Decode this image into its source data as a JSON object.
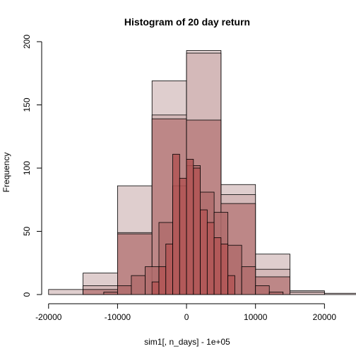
{
  "chart_data": {
    "type": "bar",
    "title": "Histogram of 20 day return",
    "xlabel": "sim1[, n_days] - 1e+05",
    "ylabel": "Frequency",
    "xlim": [
      -21000,
      21500
    ],
    "ylim": [
      0,
      200
    ],
    "x_ticks": [
      -20000,
      -10000,
      0,
      10000,
      20000
    ],
    "y_ticks": [
      0,
      50,
      100,
      150,
      200
    ],
    "x_tick_labels": [
      "-20000",
      "-10000",
      "0",
      "10000",
      "20000"
    ],
    "y_tick_labels": [
      "0",
      "50",
      "100",
      "150",
      "200"
    ],
    "grid": false,
    "legend": "none",
    "series": [
      {
        "bin_width": 5000,
        "color": "#d9c6c6",
        "bins": [
          {
            "x0": -20000,
            "count": 4
          },
          {
            "x0": -15000,
            "count": 17
          },
          {
            "x0": -10000,
            "count": 86
          },
          {
            "x0": -5000,
            "count": 169
          },
          {
            "x0": 0,
            "count": 193
          },
          {
            "x0": 5000,
            "count": 87
          },
          {
            "x0": 10000,
            "count": 32
          },
          {
            "x0": 15000,
            "count": 3
          },
          {
            "x0": 20000,
            "count": 1
          }
        ]
      },
      {
        "bin_width": 5000,
        "color": "#d2b5b5",
        "bins": [
          {
            "x0": -15000,
            "count": 7
          },
          {
            "x0": -10000,
            "count": 49
          },
          {
            "x0": -5000,
            "count": 142
          },
          {
            "x0": 0,
            "count": 191
          },
          {
            "x0": 5000,
            "count": 79
          },
          {
            "x0": 10000,
            "count": 20
          },
          {
            "x0": 15000,
            "count": 2
          }
        ]
      },
      {
        "bin_width": 5000,
        "color": "#b87e7e",
        "bins": [
          {
            "x0": -15000,
            "count": 4
          },
          {
            "x0": -10000,
            "count": 48
          },
          {
            "x0": -5000,
            "count": 139
          },
          {
            "x0": 0,
            "count": 138
          },
          {
            "x0": 5000,
            "count": 72
          },
          {
            "x0": 10000,
            "count": 14
          }
        ]
      },
      {
        "bin_width": 2000,
        "color": "#b06c6c",
        "bins": [
          {
            "x0": -12000,
            "count": 2
          },
          {
            "x0": -10000,
            "count": 7
          },
          {
            "x0": -8000,
            "count": 15
          },
          {
            "x0": -6000,
            "count": 22
          },
          {
            "x0": -4000,
            "count": 57
          },
          {
            "x0": -2000,
            "count": 86
          },
          {
            "x0": 0,
            "count": 102
          },
          {
            "x0": 2000,
            "count": 81
          },
          {
            "x0": 4000,
            "count": 65
          },
          {
            "x0": 6000,
            "count": 39
          },
          {
            "x0": 8000,
            "count": 22
          },
          {
            "x0": 10000,
            "count": 7
          },
          {
            "x0": 12000,
            "count": 2
          }
        ]
      },
      {
        "bin_width": 1000,
        "color": "#b25555",
        "bins": [
          {
            "x0": -5000,
            "count": 10
          },
          {
            "x0": -4000,
            "count": 22
          },
          {
            "x0": -3000,
            "count": 40
          },
          {
            "x0": -2000,
            "count": 111
          },
          {
            "x0": -1000,
            "count": 92
          },
          {
            "x0": 0,
            "count": 107
          },
          {
            "x0": 1000,
            "count": 100
          },
          {
            "x0": 2000,
            "count": 67
          },
          {
            "x0": 3000,
            "count": 57
          },
          {
            "x0": 4000,
            "count": 45
          },
          {
            "x0": 5000,
            "count": 40
          },
          {
            "x0": 6000,
            "count": 15
          }
        ]
      }
    ]
  }
}
